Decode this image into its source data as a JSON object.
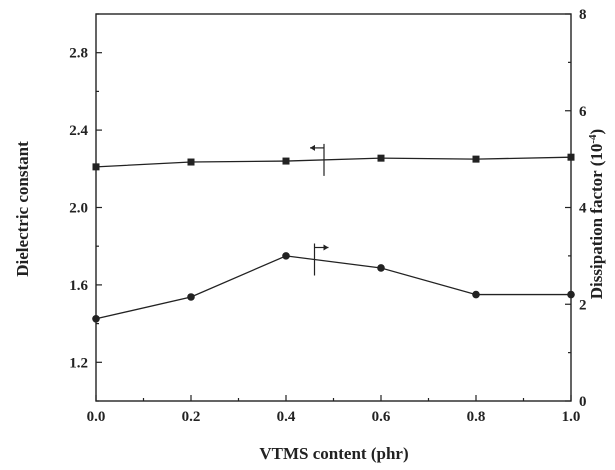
{
  "chart_data": {
    "type": "line",
    "title": "",
    "xlabel": "VTMS content (phr)",
    "ylabel_left": "Dielectric constant",
    "ylabel_right": "Dissipation factor",
    "ylabel_right_unit": "(10",
    "ylabel_right_exponent": "-4",
    "ylabel_right_close": ")",
    "xlim": [
      0.0,
      1.0
    ],
    "ylim_left": [
      1.0,
      3.0
    ],
    "ylim_right": [
      0,
      8
    ],
    "x_ticks": [
      "0.0",
      "0.2",
      "0.4",
      "0.6",
      "0.8",
      "1.0"
    ],
    "y_left_ticks": [
      "1.2",
      "1.6",
      "2.0",
      "2.4",
      "2.8"
    ],
    "y_right_ticks": [
      "0",
      "2",
      "4",
      "6",
      "8"
    ],
    "grid": false,
    "series": [
      {
        "axis": "left",
        "marker": "square",
        "color": "#222222",
        "x": [
          0.0,
          0.2,
          0.4,
          0.6,
          0.8,
          1.0
        ],
        "y": [
          2.21,
          2.235,
          2.24,
          2.255,
          2.25,
          2.26
        ]
      },
      {
        "axis": "right",
        "marker": "circle",
        "color": "#222222",
        "x": [
          0.0,
          0.2,
          0.4,
          0.6,
          0.8,
          1.0
        ],
        "y": [
          1.7,
          2.15,
          3.0,
          2.75,
          2.2,
          2.2
        ]
      }
    ],
    "annotations": [
      {
        "type": "axis-indicator-arrow",
        "points_to": "left",
        "series_index": 0,
        "at_x": 0.48
      },
      {
        "type": "axis-indicator-arrow",
        "points_to": "right",
        "series_index": 1,
        "at_x": 0.46
      }
    ]
  }
}
